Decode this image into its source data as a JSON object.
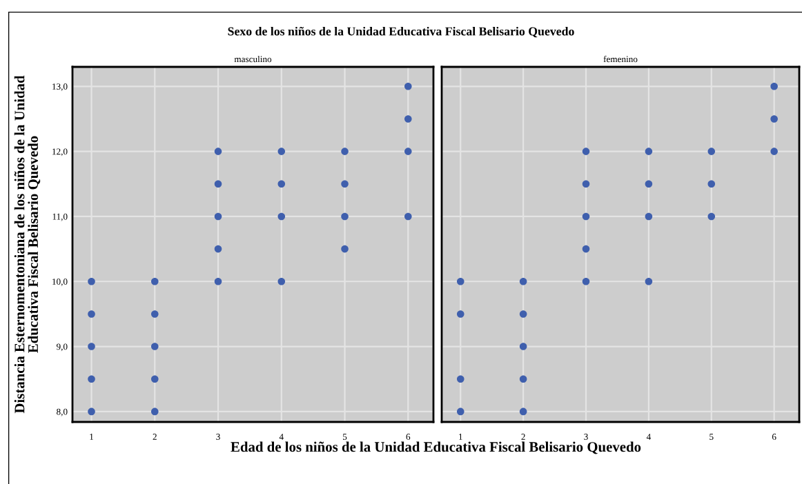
{
  "chart_data": [
    {
      "type": "scatter",
      "title": "Sexo de los niños de la Unidad Educativa Fiscal Belisario Quevedo",
      "subtitle": "masculino",
      "xlabel": "Edad de los niños de la Unidad Educativa Fiscal Belisario Quevedo",
      "ylabel": "Distancia Esternomentoniana de los niños de la Unidad\nEducativa Fiscal Belisario Quevedo",
      "series": [
        {
          "color": "#3f5fad",
          "x": [
            1,
            1,
            1,
            1,
            1,
            2,
            2,
            2,
            2,
            2,
            3,
            3,
            3,
            3,
            3,
            4,
            4,
            4,
            4,
            5,
            5,
            5,
            5,
            6,
            6,
            6,
            6
          ],
          "values": [
            8,
            8.5,
            9,
            9.5,
            10,
            8,
            8.5,
            9,
            9.5,
            10,
            10,
            10.5,
            11,
            11.5,
            12,
            10,
            11,
            11.5,
            12,
            10.5,
            11,
            11.5,
            12,
            11,
            12,
            12.5,
            13
          ]
        }
      ],
      "xlim": [
        0.7,
        6.4
      ],
      "xticks": [
        1,
        2,
        3,
        4,
        5,
        6
      ],
      "ylim": [
        7.84,
        13.3
      ],
      "yticks": [
        {
          "value": 8,
          "label": "8,0"
        },
        {
          "value": 9,
          "label": "9,0"
        },
        {
          "value": 10,
          "label": "10,0"
        },
        {
          "value": 11,
          "label": "11,0"
        },
        {
          "value": 12,
          "label": "12,0"
        },
        {
          "value": 13,
          "label": "13,0"
        }
      ],
      "grid": true,
      "marker": "circle"
    },
    {
      "type": "scatter",
      "subtitle": "femenino",
      "series": [
        {
          "color": "#3f5fad",
          "x": [
            1,
            1,
            1,
            1,
            2,
            2,
            2,
            2,
            2,
            3,
            3,
            3,
            3,
            3,
            4,
            4,
            4,
            4,
            5,
            5,
            5,
            6,
            6,
            6
          ],
          "values": [
            8,
            8.5,
            9.5,
            10,
            8,
            8.5,
            9,
            9.5,
            10,
            10,
            10.5,
            11,
            11.5,
            12,
            10,
            11,
            11.5,
            12,
            11,
            11.5,
            12,
            12,
            12.5,
            13
          ]
        }
      ],
      "xlim": [
        0.7,
        6.4
      ],
      "xticks": [
        1,
        2,
        3,
        4,
        5,
        6
      ],
      "ylim": [
        7.84,
        13.3
      ],
      "yticks": [
        {
          "value": 8,
          "label": null
        },
        {
          "value": 9,
          "label": null
        },
        {
          "value": 10,
          "label": null
        },
        {
          "value": 11,
          "label": null
        },
        {
          "value": 12,
          "label": null
        },
        {
          "value": 13,
          "label": null
        }
      ],
      "grid": true,
      "marker": "circle",
      "tick_labels": "x"
    }
  ]
}
